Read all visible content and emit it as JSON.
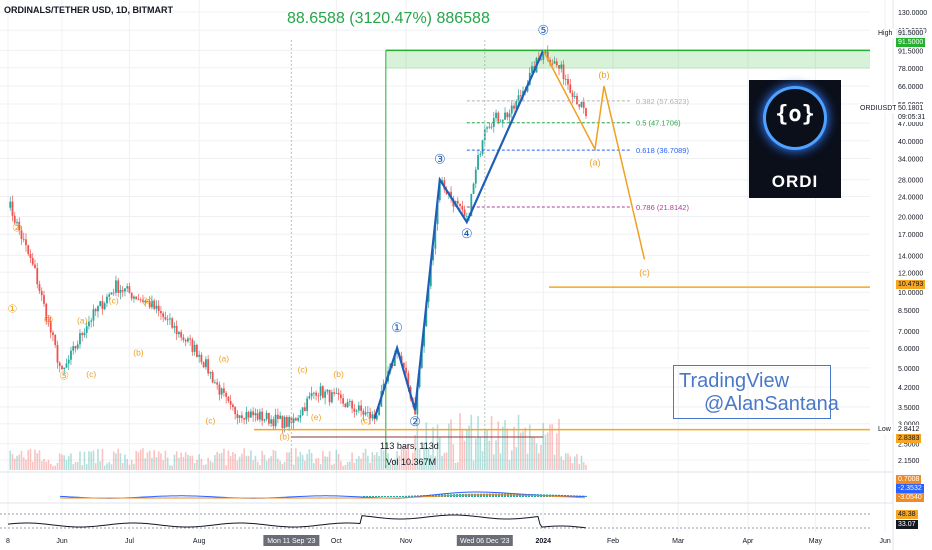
{
  "header": {
    "symbol": "ORDINALS/TETHER USD, 1D, BITMART",
    "gain_label": "88.6588 (3120.47%) 886588"
  },
  "logo": {
    "glyph": "{o}",
    "text": "ORDI"
  },
  "watermark": {
    "line1": "TradingView",
    "line2": "@AlanSantana"
  },
  "colors": {
    "up": "#26a69a",
    "down": "#ef5350",
    "wave_line": "#1e5eb8",
    "abc_line": "#f0a020",
    "target": "#f5a623",
    "high_line": "#25b12f",
    "grid": "#eef0f3"
  },
  "price_scale": {
    "ticks": [
      "130.0000",
      "110.0000",
      "91.5000",
      "78.0000",
      "66.0000",
      "56.0000",
      "47.0000",
      "40.0000",
      "34.0000",
      "28.0000",
      "24.0000",
      "20.0000",
      "17.0000",
      "14.0000",
      "12.0000",
      "10.0000",
      "8.5000",
      "7.0000",
      "6.0000",
      "5.0000",
      "4.2000",
      "3.5000",
      "3.0000",
      "2.5000",
      "2.1500"
    ],
    "high": {
      "label": "High",
      "value": "91.5000"
    },
    "low": {
      "label": "Low",
      "value": "2.8412"
    },
    "last": {
      "symbol": "ORDIUSDT",
      "value": "50.1801",
      "countdown": "09:05:31"
    },
    "target": "10.4793",
    "low_box": "2.8383"
  },
  "time_axis": {
    "labels": [
      "8",
      "Jun",
      "Jul",
      "Aug",
      "Oct",
      "Nov",
      "2024",
      "Feb",
      "Mar",
      "Apr",
      "May",
      "Jun"
    ],
    "highlights": [
      "Mon 11 Sep '23",
      "Wed 06 Dec '23"
    ]
  },
  "fib": [
    {
      "label": "0.382 (57.6323)"
    },
    {
      "label": "0.5 (47.1706)"
    },
    {
      "label": "0.618 (36.7089)"
    },
    {
      "label": "0.786 (21.8142)"
    }
  ],
  "measure": {
    "bars": "113 bars, 113d",
    "vol": "Vol 10.367M"
  },
  "wave_labels": {
    "impulse": [
      "①",
      "②",
      "③",
      "④",
      "⑤"
    ],
    "correction": [
      "(a)",
      "(b)",
      "(c)",
      "(d)",
      "(e)"
    ]
  },
  "indicators": {
    "macd": {
      "values": [
        "0.7008",
        "-2.3532",
        "-3.0540"
      ]
    },
    "rsi": {
      "values": [
        "48.38",
        "33.07"
      ]
    }
  },
  "chart_data": {
    "type": "line",
    "title": "ORDINALS/TETHER USD, 1D, BITMART",
    "scale": "log",
    "ylim": [
      2.0,
      130.0
    ],
    "series": [
      {
        "x": [
          "2023-05-08",
          "2023-05-20",
          "2023-06-01",
          "2023-06-12",
          "2023-06-25",
          "2023-07-10",
          "2023-08-01",
          "2023-08-15",
          "2023-09-11",
          "2023-09-22",
          "2023-10-05",
          "2023-10-18",
          "2023-10-28",
          "2023-11-05",
          "2023-11-16",
          "2023-11-28",
          "2023-12-06",
          "2023-12-18",
          "2024-01-01",
          "2024-01-10",
          "2024-01-20"
        ],
        "values": [
          23,
          12,
          4.7,
          7.5,
          10.6,
          9.0,
          5.7,
          3.4,
          3.0,
          4.1,
          3.6,
          3.15,
          6.0,
          3.4,
          28.0,
          19.0,
          47.0,
          52.0,
          91.5,
          74.0,
          50.18
        ]
      }
    ],
    "projection": {
      "points": [
        {
          "label": "(a)",
          "x": "2024-01-24",
          "value": 37
        },
        {
          "label": "(b)",
          "x": "2024-01-28",
          "value": 66
        },
        {
          "label": "(c)",
          "x": "2024-02-15",
          "value": 13.5
        }
      ]
    },
    "levels": [
      {
        "name": "High",
        "value": 91.5
      },
      {
        "name": "0.382",
        "value": 57.6323
      },
      {
        "name": "0.5",
        "value": 47.1706
      },
      {
        "name": "0.618",
        "value": 36.7089
      },
      {
        "name": "0.786",
        "value": 21.8142
      },
      {
        "name": "target",
        "value": 10.4793
      },
      {
        "name": "Low",
        "value": 2.8412
      }
    ]
  }
}
